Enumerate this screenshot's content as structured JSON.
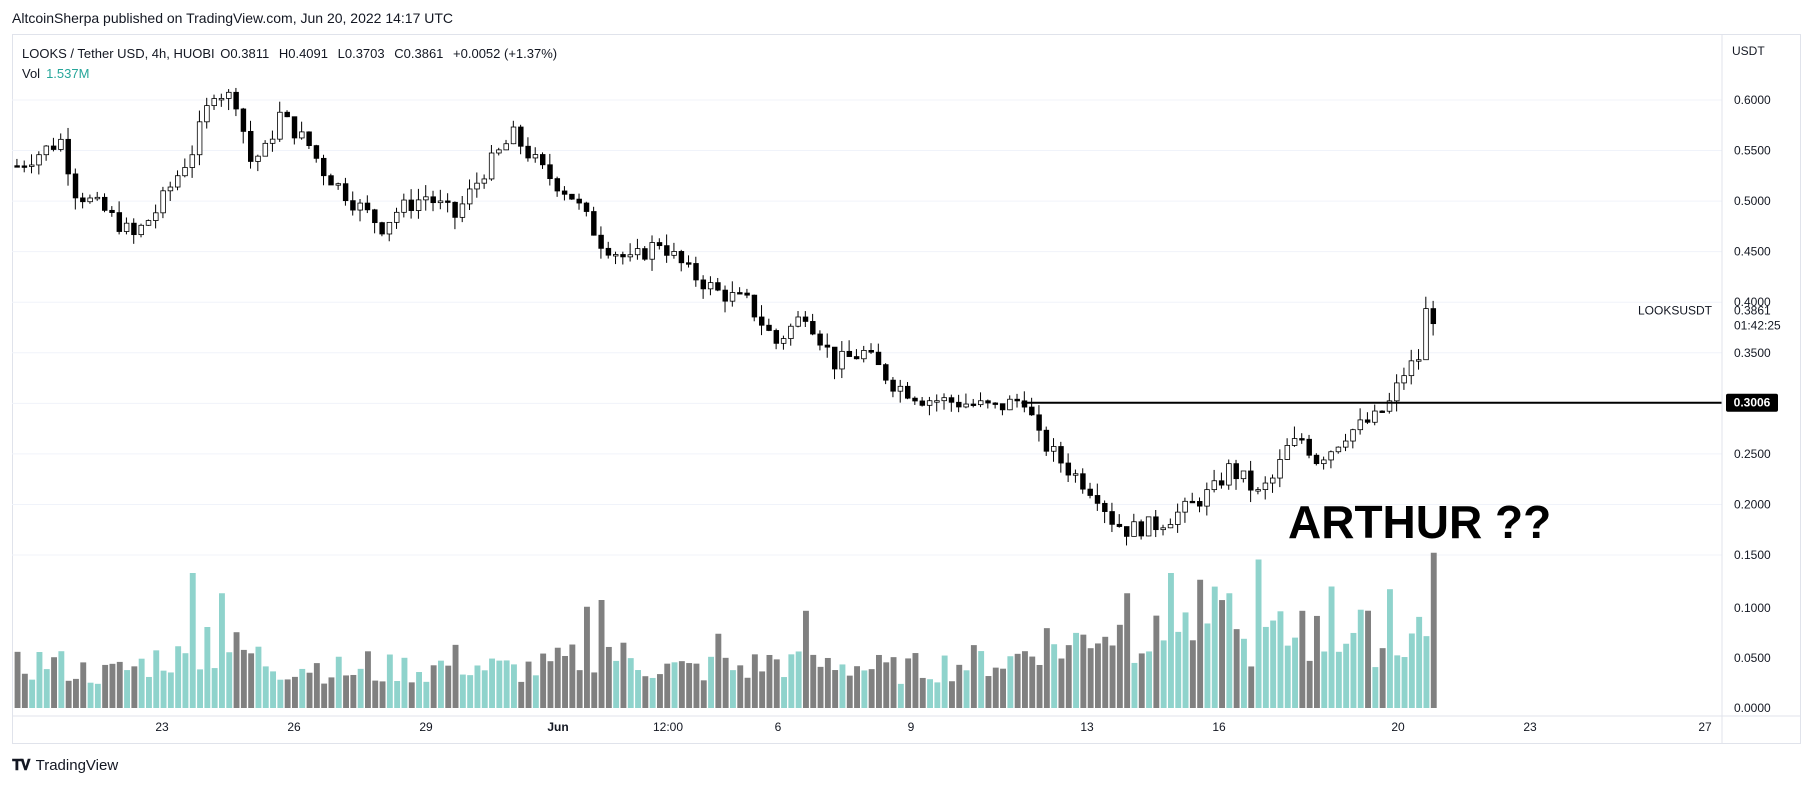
{
  "header": {
    "published": "AltcoinSherpa published on TradingView.com, Jun 20, 2022 14:17 UTC"
  },
  "legend": {
    "symbol": "LOOKS / Tether USD, 4h, HUOBI",
    "open_label": "O",
    "open": "0.3811",
    "high_label": "H",
    "high": "0.4091",
    "low_label": "L",
    "low": "0.3703",
    "close_label": "C",
    "close": "0.3861",
    "change": "+0.0052 (+1.37%)",
    "vol_label": "Vol",
    "vol_value": "1.537M"
  },
  "footer": {
    "brand": "TradingView"
  },
  "colors": {
    "up": "#ffffff",
    "down": "#000000",
    "wick": "#000000",
    "vol_up": "#8fd3cc",
    "vol_down": "#808080",
    "grid": "#f0f3fa"
  },
  "chart_data": {
    "type": "candlestick",
    "timeframe": "4h",
    "currency": "USDT",
    "y_axis": {
      "ticks": [
        "0.6000",
        "0.5500",
        "0.5000",
        "0.4500",
        "0.4000",
        "0.3500",
        "0.2500",
        "0.2000",
        "0.1500",
        "0.1000",
        "0.0500",
        "0.0000"
      ],
      "price_range": [
        0.165,
        0.63
      ]
    },
    "x_axis": {
      "ticks": [
        "23",
        "26",
        "29",
        "Jun",
        "12:00",
        "6",
        "9",
        "13",
        "16",
        "20",
        "23",
        "27"
      ]
    },
    "last_price": {
      "symbol": "LOOKSUSDT",
      "price": "0.3861",
      "countdown": "01:42:25"
    },
    "horizontal_line": {
      "price": 0.3006,
      "label": "0.3006"
    },
    "annotation": "ARTHUR ??",
    "price_path": [
      [
        0,
        0.535
      ],
      [
        6,
        0.56
      ],
      [
        8,
        0.51
      ],
      [
        12,
        0.49
      ],
      [
        16,
        0.465
      ],
      [
        19,
        0.49
      ],
      [
        24,
        0.55
      ],
      [
        27,
        0.61
      ],
      [
        30,
        0.6
      ],
      [
        32,
        0.54
      ],
      [
        34,
        0.55
      ],
      [
        36,
        0.585
      ],
      [
        40,
        0.555
      ],
      [
        42,
        0.53
      ],
      [
        46,
        0.5
      ],
      [
        50,
        0.475
      ],
      [
        52,
        0.49
      ],
      [
        56,
        0.505
      ],
      [
        60,
        0.485
      ],
      [
        64,
        0.53
      ],
      [
        68,
        0.565
      ],
      [
        72,
        0.53
      ],
      [
        76,
        0.505
      ],
      [
        80,
        0.46
      ],
      [
        84,
        0.44
      ],
      [
        88,
        0.46
      ],
      [
        92,
        0.43
      ],
      [
        96,
        0.41
      ],
      [
        100,
        0.4
      ],
      [
        104,
        0.36
      ],
      [
        108,
        0.39
      ],
      [
        112,
        0.34
      ],
      [
        116,
        0.35
      ],
      [
        120,
        0.32
      ],
      [
        124,
        0.305
      ],
      [
        130,
        0.3
      ],
      [
        134,
        0.295
      ],
      [
        138,
        0.305
      ],
      [
        140,
        0.265
      ],
      [
        144,
        0.235
      ],
      [
        148,
        0.21
      ],
      [
        150,
        0.185
      ],
      [
        152,
        0.175
      ],
      [
        156,
        0.18
      ],
      [
        160,
        0.195
      ],
      [
        162,
        0.205
      ],
      [
        164,
        0.215
      ],
      [
        166,
        0.235
      ],
      [
        168,
        0.225
      ],
      [
        170,
        0.21
      ],
      [
        172,
        0.225
      ],
      [
        174,
        0.255
      ],
      [
        176,
        0.265
      ],
      [
        178,
        0.245
      ],
      [
        180,
        0.255
      ],
      [
        182,
        0.27
      ],
      [
        186,
        0.285
      ],
      [
        188,
        0.3
      ],
      [
        190,
        0.33
      ],
      [
        192,
        0.345
      ],
      [
        193,
        0.39
      ],
      [
        194,
        0.3861
      ]
    ],
    "volume_path": [
      [
        0,
        0.3
      ],
      [
        4,
        0.35
      ],
      [
        8,
        0.28
      ],
      [
        12,
        0.25
      ],
      [
        16,
        0.3
      ],
      [
        20,
        0.38
      ],
      [
        24,
        0.35
      ],
      [
        28,
        0.45
      ],
      [
        32,
        0.4
      ],
      [
        36,
        0.3
      ],
      [
        40,
        0.32
      ],
      [
        44,
        0.28
      ],
      [
        48,
        0.25
      ],
      [
        52,
        0.3
      ],
      [
        56,
        0.28
      ],
      [
        60,
        0.35
      ],
      [
        64,
        0.3
      ],
      [
        68,
        0.28
      ],
      [
        72,
        0.3
      ],
      [
        76,
        0.35
      ],
      [
        80,
        0.45
      ],
      [
        84,
        0.35
      ],
      [
        88,
        0.3
      ],
      [
        92,
        0.28
      ],
      [
        96,
        0.3
      ],
      [
        100,
        0.3
      ],
      [
        104,
        0.35
      ],
      [
        108,
        0.3
      ],
      [
        112,
        0.35
      ],
      [
        116,
        0.3
      ],
      [
        120,
        0.28
      ],
      [
        124,
        0.3
      ],
      [
        128,
        0.32
      ],
      [
        132,
        0.35
      ],
      [
        136,
        0.35
      ],
      [
        140,
        0.5
      ],
      [
        144,
        0.45
      ],
      [
        148,
        0.6
      ],
      [
        152,
        0.55
      ],
      [
        156,
        0.5
      ],
      [
        160,
        0.6
      ],
      [
        164,
        0.65
      ],
      [
        168,
        0.45
      ],
      [
        172,
        0.55
      ],
      [
        176,
        0.5
      ],
      [
        180,
        0.55
      ],
      [
        184,
        0.55
      ],
      [
        188,
        0.45
      ],
      [
        192,
        0.6
      ],
      [
        194,
        0.45
      ]
    ],
    "volume_spikes": [
      [
        24,
        1.0
      ],
      [
        26,
        0.6
      ],
      [
        28,
        0.85
      ],
      [
        48,
        0.42
      ],
      [
        78,
        0.75
      ],
      [
        80,
        0.8
      ],
      [
        96,
        0.55
      ],
      [
        108,
        0.72
      ],
      [
        152,
        0.85
      ],
      [
        158,
        1.0
      ],
      [
        162,
        0.95
      ],
      [
        166,
        0.85
      ],
      [
        170,
        1.1
      ],
      [
        176,
        0.72
      ],
      [
        180,
        0.9
      ],
      [
        188,
        0.88
      ],
      [
        194,
        1.15
      ]
    ]
  }
}
